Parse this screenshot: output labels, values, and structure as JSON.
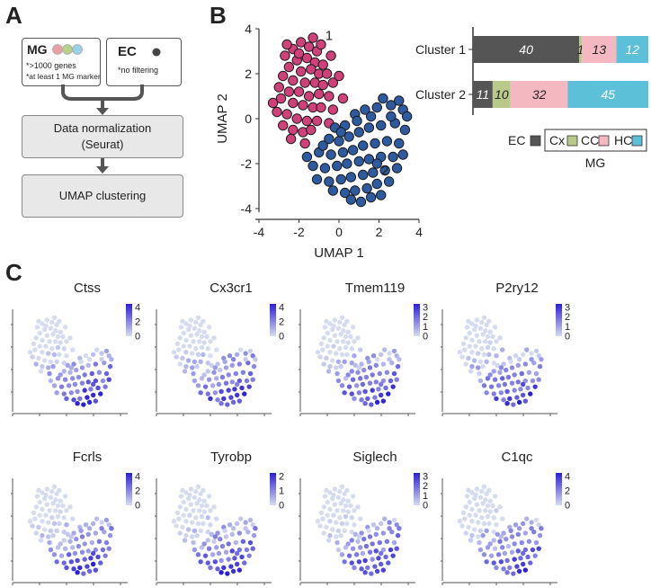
{
  "panels": {
    "a": "A",
    "b": "B",
    "c": "C"
  },
  "panel_a": {
    "mg_box": {
      "title": "MG",
      "line1": "*>1000 genes",
      "line2": "*at least 1 MG marker",
      "dots": [
        "#e8a0a8",
        "#b8d08a",
        "#9ad0e8"
      ]
    },
    "ec_box": {
      "title": "EC",
      "line1": "*no filtering"
    },
    "norm_box": {
      "line1": "Data normalization",
      "line2": "(Seurat)"
    },
    "umap_box": {
      "line1": "UMAP clustering"
    },
    "arrow_color": "#555555"
  },
  "chart_data": [
    {
      "type": "scatter",
      "id": "umap-clusters",
      "xlabel": "UMAP 1",
      "ylabel": "UMAP 2",
      "xlim": [
        -4,
        4
      ],
      "ylim": [
        -4,
        4
      ],
      "xticks": [
        "-4",
        "-2",
        "0",
        "2",
        "4"
      ],
      "yticks": [
        "-4",
        "-2",
        "0",
        "2",
        "4"
      ],
      "annotations": [
        {
          "text": "1",
          "x": -0.5,
          "y": 3.5
        },
        {
          "text": "2",
          "x": 2.3,
          "y": -2.5
        }
      ],
      "series": [
        {
          "name": "1",
          "color": "#d0417a",
          "points": [
            [
              -2.3,
              3.1
            ],
            [
              -1.9,
              3.4
            ],
            [
              -1.5,
              3.2
            ],
            [
              -1.1,
              3.0
            ],
            [
              -2.7,
              2.8
            ],
            [
              -2.1,
              2.6
            ],
            [
              -1.6,
              2.7
            ],
            [
              -1.2,
              2.5
            ],
            [
              -0.8,
              2.4
            ],
            [
              -2.5,
              2.3
            ],
            [
              -1.9,
              2.1
            ],
            [
              -1.4,
              2.2
            ],
            [
              -1.0,
              2.0
            ],
            [
              -0.6,
              2.0
            ],
            [
              -2.8,
              1.9
            ],
            [
              -2.3,
              1.7
            ],
            [
              -1.7,
              1.6
            ],
            [
              -1.2,
              1.6
            ],
            [
              -0.8,
              1.5
            ],
            [
              -0.3,
              1.6
            ],
            [
              -3.0,
              1.4
            ],
            [
              -2.5,
              1.2
            ],
            [
              -2.0,
              1.2
            ],
            [
              -1.5,
              1.0
            ],
            [
              -1.0,
              1.1
            ],
            [
              -0.5,
              1.0
            ],
            [
              -2.9,
              0.9
            ],
            [
              -2.3,
              0.7
            ],
            [
              -1.8,
              0.6
            ],
            [
              -1.3,
              0.5
            ],
            [
              -0.9,
              0.5
            ],
            [
              -0.3,
              0.4
            ],
            [
              -3.1,
              0.3
            ],
            [
              -2.6,
              0.2
            ],
            [
              -2.1,
              0.0
            ],
            [
              -1.6,
              -0.1
            ],
            [
              -1.1,
              -0.1
            ],
            [
              -0.5,
              -0.2
            ],
            [
              -2.8,
              -0.3
            ],
            [
              -2.3,
              -0.5
            ],
            [
              -1.8,
              -0.6
            ],
            [
              -1.4,
              -0.5
            ],
            [
              -2.0,
              2.9
            ],
            [
              -1.3,
              3.6
            ],
            [
              -0.4,
              2.8
            ],
            [
              0.0,
              1.9
            ],
            [
              0.2,
              0.9
            ],
            [
              -2.4,
              -0.9
            ],
            [
              -1.7,
              -1.1
            ],
            [
              -3.3,
              0.7
            ],
            [
              -2.6,
              3.3
            ],
            [
              -0.9,
              3.3
            ]
          ]
        },
        {
          "name": "2",
          "color": "#2e5aa0",
          "points": [
            [
              -0.2,
              -0.4
            ],
            [
              0.3,
              -0.3
            ],
            [
              0.8,
              0.2
            ],
            [
              1.3,
              0.4
            ],
            [
              1.9,
              0.5
            ],
            [
              2.6,
              0.6
            ],
            [
              3.2,
              0.4
            ],
            [
              -0.5,
              -0.9
            ],
            [
              0.0,
              -1.0
            ],
            [
              0.5,
              -0.8
            ],
            [
              1.0,
              -0.6
            ],
            [
              1.5,
              -0.4
            ],
            [
              2.1,
              -0.3
            ],
            [
              2.8,
              -0.2
            ],
            [
              3.3,
              -0.5
            ],
            [
              -1.0,
              -1.5
            ],
            [
              -0.4,
              -1.6
            ],
            [
              0.2,
              -1.5
            ],
            [
              0.7,
              -1.4
            ],
            [
              1.2,
              -1.2
            ],
            [
              1.8,
              -1.1
            ],
            [
              2.4,
              -1.0
            ],
            [
              3.0,
              -1.1
            ],
            [
              -1.3,
              -2.1
            ],
            [
              -0.7,
              -2.2
            ],
            [
              -0.1,
              -2.1
            ],
            [
              0.4,
              -2.0
            ],
            [
              1.0,
              -1.9
            ],
            [
              1.5,
              -1.8
            ],
            [
              2.1,
              -1.7
            ],
            [
              2.7,
              -1.7
            ],
            [
              3.2,
              -1.6
            ],
            [
              -1.1,
              -2.7
            ],
            [
              -0.5,
              -2.8
            ],
            [
              0.1,
              -2.7
            ],
            [
              0.6,
              -2.6
            ],
            [
              1.2,
              -2.5
            ],
            [
              1.7,
              -2.4
            ],
            [
              2.3,
              -2.3
            ],
            [
              2.9,
              -2.2
            ],
            [
              -0.3,
              -3.2
            ],
            [
              0.3,
              -3.3
            ],
            [
              0.8,
              -3.2
            ],
            [
              1.4,
              -3.1
            ],
            [
              1.9,
              -2.9
            ],
            [
              2.5,
              -2.8
            ],
            [
              0.6,
              -3.6
            ],
            [
              1.1,
              -3.7
            ],
            [
              1.6,
              -3.5
            ],
            [
              2.1,
              -3.4
            ],
            [
              2.6,
              0.1
            ],
            [
              3.4,
              0.1
            ],
            [
              0.9,
              -0.1
            ],
            [
              1.6,
              0.1
            ],
            [
              -0.8,
              -1.2
            ],
            [
              2.2,
              0.9
            ],
            [
              3.0,
              0.8
            ],
            [
              0.1,
              -0.6
            ],
            [
              1.9,
              -2.0
            ],
            [
              -1.6,
              -1.7
            ]
          ]
        }
      ]
    },
    {
      "type": "bar",
      "id": "cluster-composition",
      "orientation": "horizontal",
      "stacked": true,
      "categories": [
        "Cluster 1",
        "Cluster 2"
      ],
      "series": [
        {
          "name": "EC",
          "color": "#555555",
          "values": [
            40,
            11
          ]
        },
        {
          "name": "Cx",
          "color": "#b8c98a",
          "values": [
            1,
            10
          ]
        },
        {
          "name": "CC",
          "color": "#f4b8c0",
          "values": [
            13,
            32
          ]
        },
        {
          "name": "HC",
          "color": "#5bc0d8",
          "values": [
            12,
            45
          ]
        }
      ],
      "legend_group_label": "MG",
      "legend": "bottom"
    }
  ],
  "feature_plots": [
    {
      "title": "Ctss",
      "ticks": [
        "4",
        "2",
        "0"
      ],
      "max": 4
    },
    {
      "title": "Cx3cr1",
      "ticks": [
        "4",
        "2",
        "0"
      ],
      "max": 4
    },
    {
      "title": "Tmem119",
      "ticks": [
        "3",
        "2",
        "1",
        "0"
      ],
      "max": 3
    },
    {
      "title": "P2ry12",
      "ticks": [
        "3",
        "2",
        "1",
        "0"
      ],
      "max": 3
    },
    {
      "title": "Fcrls",
      "ticks": [
        "4",
        "2",
        "0"
      ],
      "max": 4
    },
    {
      "title": "Tyrobp",
      "ticks": [
        "2",
        "1",
        "0"
      ],
      "max": 2
    },
    {
      "title": "Siglech",
      "ticks": [
        "3",
        "2",
        "1",
        "0"
      ],
      "max": 3
    },
    {
      "title": "C1qc",
      "ticks": [
        "4",
        "2",
        "0"
      ],
      "max": 4
    }
  ],
  "feature_colors": {
    "low": "#d6dcf0",
    "high": "#2a1fd8"
  }
}
